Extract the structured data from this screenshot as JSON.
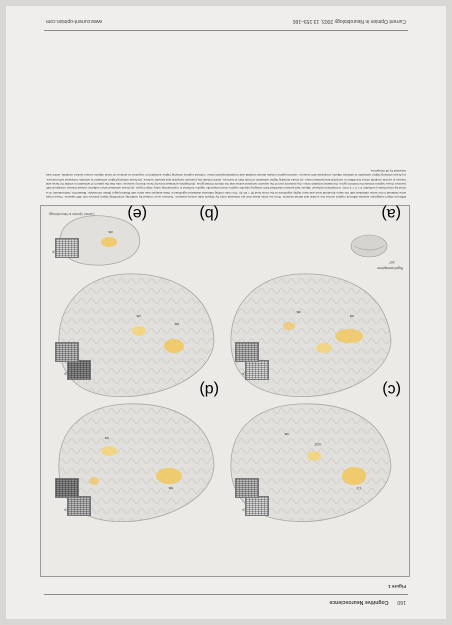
{
  "journal": {
    "page_number": "160",
    "section": "Cognitive Neuroscience",
    "running_footer": "Current Opinion in Neurobiology 2003, 13:159–166",
    "website": "www.current-opinion.com"
  },
  "figure": {
    "label": "Figure 1",
    "panels": [
      {
        "id": "a",
        "label": "(a)"
      },
      {
        "id": "b",
        "label": "(b)"
      },
      {
        "id": "c",
        "label": "(c)"
      },
      {
        "id": "d",
        "label": "(d)"
      },
      {
        "id": "e",
        "label": "(e)"
      }
    ],
    "hemisphere_label": "Right hemisphere",
    "subject_label": "JHT",
    "region_tags": [
      "sts",
      "ots",
      "sts",
      "ots",
      "LO",
      "VOT",
      "ots",
      "sts",
      "sts",
      "ots"
    ],
    "compare_symbol": ">",
    "credit": "Current Opinion in Neurobiology",
    "caption": "Different object categories activate different regions across the ventral and dorsal streams. Here we show areas that are activated more by objects than texture patterns. Textures were created by randomly scrambling object pictures into 400 squares. These maps were obtained in the same individual with the same threshold level and were highly significant at the voxel level (P < 10–6). The color-coding indicates statistical significance. Data analysis was done with Brainvoyager (Brain Innovation, Maastricht, Netherlands) on a voxel-by-voxel basis (resolution 3 × 3 × 3 mm). Comparison between objects and textures identified both category-specific regions and nonspecific regions involved in representing many object types. (a) Areas activated when subjects viewed houses compared with textures; these regions include the fusiform gyrus, the lateral occipital cortex, the posterior part of the superior temporal sulcus and the inferior frontal gyrus. (b) Regions activated more by faces than by textures; note that the pattern of activation is similar for faces and houses in ventral occipital cortex but differs in temporal and parietal cortex. (c) Areas showing higher activation to tools than to textures, which include the posterior temporal and parietal cortices. (d) Areas showing higher activation to animals compared with textures. (e) Areas showing higher activation to abstract objects compared with textures; ventral regions include lateral occipital and occipitotemporal cortex. Colored regions showing higher activation in response to pictures of novel objects versus texture occipital, which was activated by all categories."
  }
}
